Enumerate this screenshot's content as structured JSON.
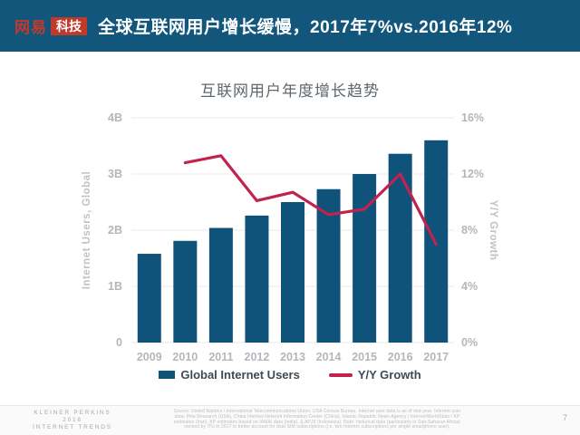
{
  "header": {
    "logo": {
      "netease": "网易",
      "tech": "科技"
    },
    "title": "全球互联网用户增长缓慢，2017年7%vs.2016年12%",
    "colors": {
      "bar_bg": "#12567c",
      "logo_red": "#c0392b"
    }
  },
  "chart_data": {
    "type": "bar+line",
    "title": "互联网用户年度增长趋势",
    "categories": [
      "2009",
      "2010",
      "2011",
      "2012",
      "2013",
      "2014",
      "2015",
      "2016",
      "2017"
    ],
    "series": [
      {
        "name": "Global Internet Users",
        "type": "bar",
        "axis": "left",
        "color": "#0f537a",
        "values": [
          1.58,
          1.81,
          2.04,
          2.26,
          2.5,
          2.73,
          3.0,
          3.36,
          3.6
        ]
      },
      {
        "name": "Y/Y Growth",
        "type": "line",
        "axis": "right",
        "color": "#c1234e",
        "values": [
          null,
          12.8,
          13.3,
          10.1,
          10.7,
          9.1,
          9.5,
          12.0,
          7.0
        ]
      }
    ],
    "left_axis": {
      "label": "Internet Users, Global",
      "range": [
        0,
        4
      ],
      "ticks": [
        {
          "v": 4,
          "label": "4B"
        },
        {
          "v": 3,
          "label": "3B"
        },
        {
          "v": 2,
          "label": "2B"
        },
        {
          "v": 1,
          "label": "1B"
        },
        {
          "v": 0,
          "label": "0"
        }
      ]
    },
    "right_axis": {
      "label": "Y/Y Growth",
      "range": [
        0,
        16
      ],
      "ticks": [
        {
          "v": 16,
          "label": "16%"
        },
        {
          "v": 12,
          "label": "12%"
        },
        {
          "v": 8,
          "label": "8%"
        },
        {
          "v": 4,
          "label": "4%"
        },
        {
          "v": 0,
          "label": "0%"
        }
      ]
    },
    "grid": true,
    "legend_position": "bottom"
  },
  "footer": {
    "brand_lines": [
      "KLEINER PERKINS",
      "2018",
      "INTERNET TRENDS"
    ],
    "source_lines": [
      "Source: United Nations / International Telecommunications Union, USA Census Bureau. Internet user data is as of mid-year. Internet user",
      "data: Pew Research (USA), China Internet Network Information Center (China), Islamic Republic News Agency / InternetWorldStats / KP",
      "estimates (Iran), KP estimates based on IAMAI data (India), & APJII (Indonesia). Note: historical data (particularly in Sub-Saharan Africa)",
      "revised by ITU in 2017 to better account for dual-SIM subscriptions (i.e. two Internet subscriptions per single smartphone user)."
    ],
    "page_number": "7"
  }
}
